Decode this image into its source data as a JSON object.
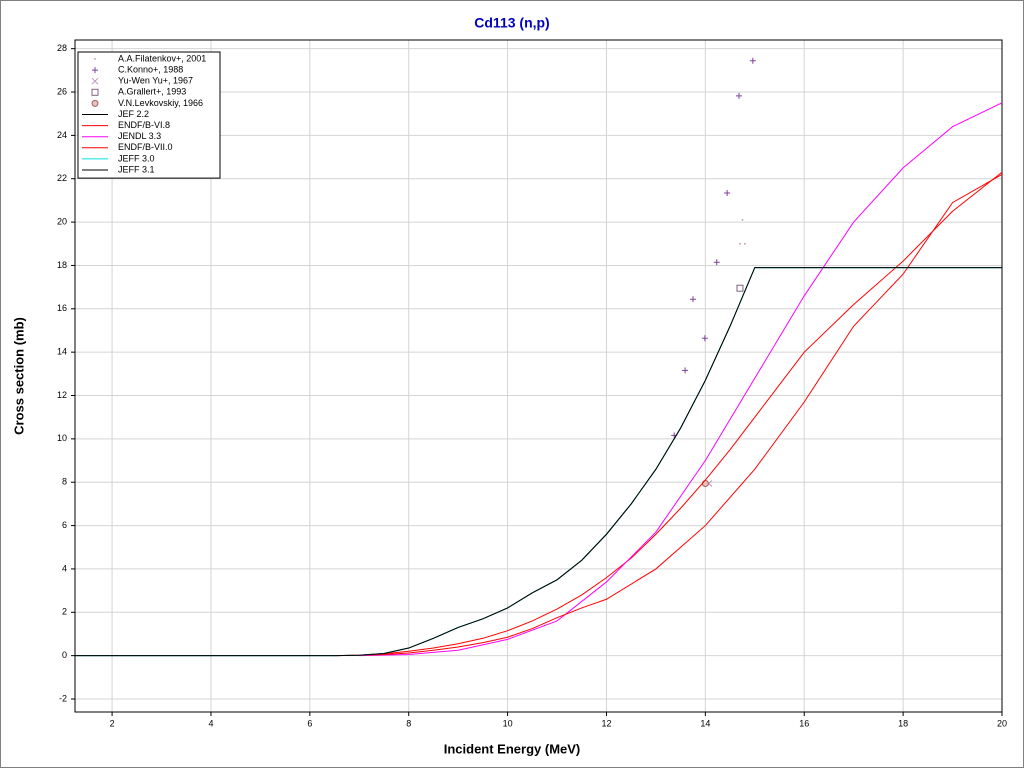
{
  "chart_data": {
    "type": "line",
    "title": "Cd113 (n,p)",
    "x_label": "Incident Energy (MeV)",
    "y_label": "Cross section (mb)",
    "xlim": [
      1.25,
      20
    ],
    "ylim": [
      -2.6,
      28.4
    ],
    "xticks": [
      2,
      4,
      6,
      8,
      10,
      12,
      14,
      16,
      18,
      20
    ],
    "yticks": [
      -2,
      0,
      2,
      4,
      6,
      8,
      10,
      12,
      14,
      16,
      18,
      20,
      22,
      24,
      26,
      28
    ],
    "grid": true,
    "legend": "upper left",
    "series": [
      {
        "name": "A.A.Filatenkov+, 2001",
        "color": "#c090a8",
        "marker": "dot",
        "x": [
          14.75,
          14.7,
          14.8
        ],
        "y": [
          20.1,
          19.0,
          19.0
        ]
      },
      {
        "name": "C.Konno+, 1988",
        "color": "#8040a0",
        "marker": "plus",
        "x": [
          13.37,
          13.59,
          13.75,
          13.99,
          14.23,
          14.44,
          14.68,
          14.96
        ],
        "y": [
          10.16,
          13.16,
          16.44,
          14.64,
          18.15,
          21.34,
          25.82,
          27.44
        ]
      },
      {
        "name": "Yu-Wen Yu+, 1967",
        "color": "#c090c0",
        "marker": "x",
        "x": [
          14.07
        ],
        "y": [
          7.94
        ]
      },
      {
        "name": "A.Grallert+, 1993",
        "color": "#806080",
        "marker": "square",
        "x": [
          14.7
        ],
        "y": [
          16.95
        ]
      },
      {
        "name": "V.N.Levkovskiy, 1966",
        "color": "#a06060",
        "marker": "circle",
        "x": [
          14.0
        ],
        "y": [
          7.94
        ]
      },
      {
        "name": "JEF 2.2",
        "color": "#000000",
        "x": [
          1.25,
          6.5,
          7,
          7.5,
          8,
          8.5,
          9,
          9.5,
          10,
          10.5,
          11,
          11.5,
          12,
          12.5,
          13,
          13.5,
          14,
          14.5,
          15,
          20
        ],
        "y": [
          0,
          0,
          0.02,
          0.1,
          0.35,
          0.8,
          1.3,
          1.7,
          2.2,
          2.9,
          3.5,
          4.4,
          5.6,
          7,
          8.6,
          10.5,
          12.7,
          15.2,
          17.9,
          17.9
        ]
      },
      {
        "name": "ENDF/B-VI.8",
        "color": "#ff0000",
        "x": [
          6.5,
          7,
          7.5,
          8,
          8.5,
          9,
          9.5,
          10,
          10.5,
          11,
          11.5,
          12,
          12.5,
          13,
          13.5,
          14,
          14.5,
          15,
          16,
          17,
          18,
          19,
          20
        ],
        "y": [
          0,
          0.02,
          0.08,
          0.2,
          0.35,
          0.55,
          0.8,
          1.15,
          1.6,
          2.15,
          2.8,
          3.6,
          4.5,
          5.6,
          6.8,
          8.1,
          9.5,
          11,
          14,
          16.2,
          18.2,
          20.5,
          22.3
        ]
      },
      {
        "name": "JENDL 3.3",
        "color": "#ff00ff",
        "x": [
          7,
          8,
          9,
          10,
          11,
          12,
          13,
          14,
          15,
          16,
          17,
          18,
          19,
          20
        ],
        "y": [
          0,
          0.05,
          0.25,
          0.75,
          1.6,
          3.4,
          5.7,
          9,
          12.8,
          16.6,
          20,
          22.5,
          24.4,
          25.5
        ]
      },
      {
        "name": "ENDF/B-VII.0",
        "color": "#ff0000",
        "x": [
          6.5,
          7,
          7.5,
          8,
          8.5,
          9,
          9.5,
          10,
          10.5,
          11,
          11.5,
          12,
          13,
          14,
          15,
          16,
          17,
          18,
          19,
          20
        ],
        "y": [
          0,
          0.02,
          0.05,
          0.12,
          0.25,
          0.4,
          0.6,
          0.85,
          1.25,
          1.75,
          2.2,
          2.6,
          4,
          6,
          8.6,
          11.7,
          15.2,
          17.6,
          20.9,
          22.2
        ]
      },
      {
        "name": "JEFF 3.0",
        "color": "#00e0e0",
        "x": [
          1.25,
          6.5,
          7,
          7.5,
          8,
          8.5,
          9,
          9.5,
          10,
          10.5,
          11,
          11.5,
          12,
          12.5,
          13,
          13.5,
          14,
          14.5,
          15,
          20
        ],
        "y": [
          0,
          0,
          0.02,
          0.1,
          0.35,
          0.8,
          1.3,
          1.7,
          2.2,
          2.9,
          3.5,
          4.4,
          5.6,
          7,
          8.6,
          10.5,
          12.7,
          15.2,
          17.9,
          17.9
        ]
      },
      {
        "name": "JEFF 3.1",
        "color": "#000000",
        "x": [
          1.25,
          6.5,
          7,
          7.5,
          8,
          8.5,
          9,
          9.5,
          10,
          10.5,
          11,
          11.5,
          12,
          12.5,
          13,
          13.5,
          14,
          14.5,
          15,
          20
        ],
        "y": [
          0,
          0,
          0.02,
          0.1,
          0.35,
          0.8,
          1.3,
          1.7,
          2.2,
          2.9,
          3.5,
          4.4,
          5.6,
          7,
          8.6,
          10.5,
          12.7,
          15.2,
          17.9,
          17.9
        ]
      }
    ]
  }
}
